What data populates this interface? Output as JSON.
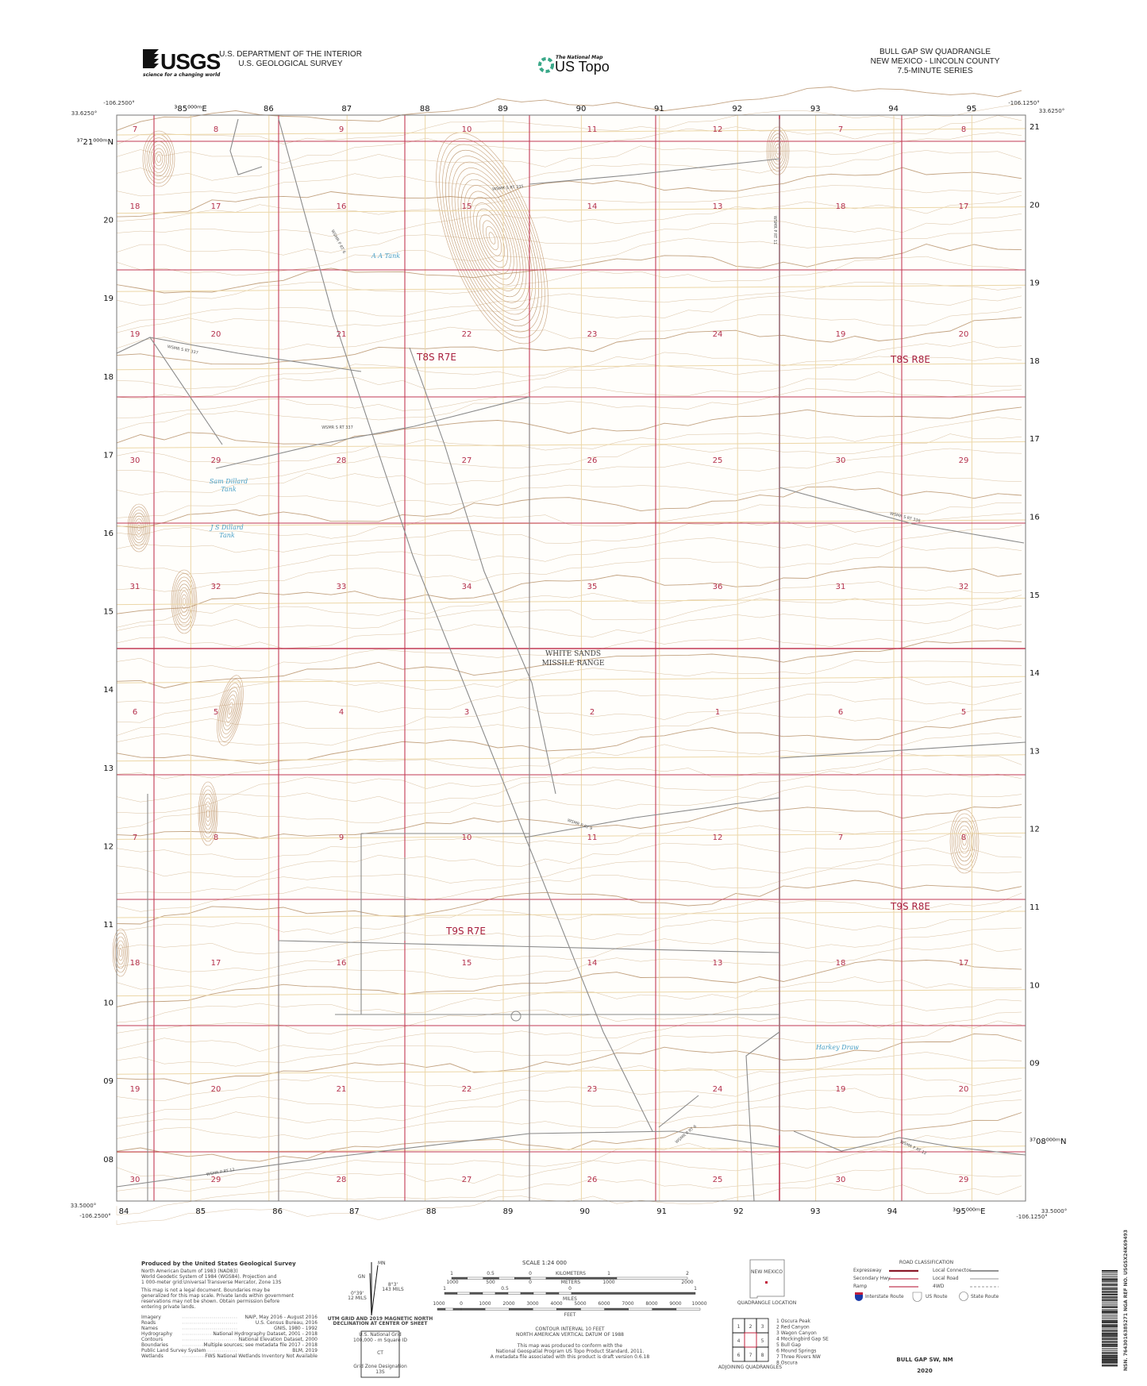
{
  "header": {
    "agency_logo": "USGS",
    "agency_tagline": "science for a changing world",
    "department": "U.S. DEPARTMENT OF THE INTERIOR",
    "survey": "U.S. GEOLOGICAL SURVEY",
    "product_small": "The National Map",
    "product": "US Topo",
    "quad_title": "BULL GAP SW QUADRANGLE",
    "quad_location": "NEW MEXICO - LINCOLN COUNTY",
    "quad_series": "7.5-MINUTE SERIES"
  },
  "corners": {
    "top_left_lon": "-106.2500°",
    "top_left_lat": "33.6250°",
    "top_right_lon": "-106.1250°",
    "top_right_lat": "33.6250°",
    "bottom_left_lon": "-106.2500°",
    "bottom_left_lat": "33.5000°",
    "bottom_right_lon": "-106.1250°",
    "bottom_right_lat": "33.5000°"
  },
  "easting_labels_top": [
    "³85⁰⁰⁰ᵐE",
    "86",
    "87",
    "88",
    "89",
    "90",
    "91",
    "92",
    "93",
    "94",
    "95"
  ],
  "easting_labels_bottom": [
    "84",
    "85",
    "86",
    "87",
    "88",
    "89",
    "90",
    "91",
    "92",
    "93",
    "94",
    "³95⁰⁰⁰ᵐE"
  ],
  "northing_labels_left": [
    "³⁷21⁰⁰⁰ᵐN",
    "20",
    "19",
    "18",
    "17",
    "16",
    "15",
    "14",
    "13",
    "12",
    "11",
    "10",
    "09",
    "08"
  ],
  "northing_labels_right": [
    "21",
    "20",
    "19",
    "18",
    "17",
    "16",
    "15",
    "14",
    "13",
    "12",
    "11",
    "10",
    "09",
    "³⁷08⁰⁰⁰ᵐN"
  ],
  "sections": [
    [
      "7",
      "8",
      "9",
      "10",
      "11",
      "12",
      "7",
      "8"
    ],
    [
      "18",
      "17",
      "16",
      "15",
      "14",
      "13",
      "18",
      "17"
    ],
    [
      "19",
      "20",
      "21",
      "22",
      "23",
      "24",
      "19",
      "20"
    ],
    [
      "30",
      "29",
      "28",
      "27",
      "26",
      "25",
      "30",
      "29"
    ],
    [
      "31",
      "32",
      "33",
      "34",
      "35",
      "36",
      "31",
      "32"
    ],
    [
      "6",
      "5",
      "4",
      "3",
      "2",
      "1",
      "6",
      "5"
    ],
    [
      "7",
      "8",
      "9",
      "10",
      "11",
      "12",
      "7",
      "8"
    ],
    [
      "18",
      "17",
      "16",
      "15",
      "14",
      "13",
      "18",
      "17"
    ],
    [
      "19",
      "20",
      "21",
      "22",
      "23",
      "24",
      "19",
      "20"
    ],
    [
      "30",
      "29",
      "28",
      "27",
      "26",
      "25",
      "30",
      "29"
    ]
  ],
  "townships": [
    "T8S R7E",
    "T8S R8E",
    "T9S R7E",
    "T9S R8E"
  ],
  "land_name": [
    "WHITE SANDS",
    "MISSILE RANGE"
  ],
  "water_features": [
    "A A Tank",
    "Sam Dillard",
    "Tank",
    "J S Dillard",
    "Tank",
    "Harkey Draw"
  ],
  "road_labels": [
    "WSMR S RT 335",
    "WSMR P RT 6",
    "WSMR S RT 337",
    "WSMR S RT 337",
    "WSMR S RT 336",
    "WSMR P RT 11",
    "WSMR P RT 9",
    "WSMR P RT 12",
    "WSMR P RT 12",
    "WSMR P RT 6"
  ],
  "colors": {
    "section_line": "#c23a55",
    "grid_line": "#ecd7a8",
    "contour": "#c9a77c",
    "contour_index": "#a87a4c",
    "road": "#8a8a8a",
    "water": "#4aa0c6"
  },
  "footer": {
    "produced_by": "Produced by the United States Geological Survey",
    "datum_lines": [
      "North American Datum of 1983 (NAD83)",
      "World Geodetic System of 1984 (WGS84).  Projection and",
      "1 000-meter grid:Universal Transverse Mercator, Zone 13S"
    ],
    "disclaimer_lines": [
      "This map is not a legal document. Boundaries may be",
      "generalized for this map scale. Private lands within government",
      "reservations may not be shown. Obtain permission before",
      "entering private lands."
    ],
    "sources": [
      [
        "Imagery",
        "NAIP, May 2016 - August 2016"
      ],
      [
        "Roads",
        "U.S. Census Bureau, 2016"
      ],
      [
        "Names",
        "GNIS, 1980 - 1992"
      ],
      [
        "Hydrography",
        "National Hydrography Dataset, 2001 - 2018"
      ],
      [
        "Contours",
        "National Elevation Dataset, 2000"
      ],
      [
        "Boundaries",
        "Multiple sources; see metadata file 2017 - 2018"
      ],
      [
        "Public Land Survey System",
        "BLM, 2019"
      ],
      [
        "Wetlands",
        "FWS National Wetlands Inventory Not Available"
      ]
    ],
    "declination": {
      "mn": "MN",
      "gn": "GN",
      "angle1": "0°39'",
      "mils1": "12 MILS",
      "angle2": "8°3'",
      "mils2": "143 MILS",
      "caption1": "UTM GRID AND 2019 MAGNETIC NORTH",
      "caption2": "DECLINATION AT CENTER OF SHEET"
    },
    "grid_box": {
      "title": "U.S. National Grid",
      "sub": "100,000 - m Square ID",
      "id": "CT",
      "zone_label": "Grid Zone Designation",
      "zone": "13S"
    },
    "scale": {
      "title": "SCALE 1:24 000",
      "km_ticks": [
        "1",
        "0.5",
        "0",
        "1",
        "2"
      ],
      "km_label": "KILOMETERS",
      "m_ticks": [
        "1000",
        "500",
        "0",
        "1000",
        "2000"
      ],
      "m_label": "METERS",
      "mi_ticks": [
        "1",
        "0.5",
        "0",
        "1"
      ],
      "mi_label": "MILES",
      "ft_ticks": [
        "1000",
        "0",
        "1000",
        "2000",
        "3000",
        "4000",
        "5000",
        "6000",
        "7000",
        "8000",
        "9000",
        "10000"
      ],
      "ft_label": "FEET"
    },
    "contour_lines": [
      "CONTOUR INTERVAL 10 FEET",
      "NORTH AMERICAN VERTICAL DATUM OF 1988"
    ],
    "standard_lines": [
      "This map was produced to conform with the",
      "National Geospatial Program US Topo Product Standard, 2011.",
      "A metadata file associated with this product is draft version 0.6.18"
    ],
    "locator": {
      "state": "NEW MEXICO",
      "caption": "QUADRANGLE LOCATION"
    },
    "road_legend": {
      "title": "ROAD CLASSIFICATION",
      "left": [
        "Expressway",
        "Secondary Hwy",
        "Ramp"
      ],
      "right": [
        "Local Connector",
        "Local Road",
        "4WD"
      ],
      "shields": [
        "Interstate Route",
        "US Route",
        "State Route"
      ]
    },
    "adjoining": {
      "cells": [
        "1",
        "2",
        "3",
        "4",
        "",
        "5",
        "6",
        "7",
        "8"
      ],
      "names": [
        "1 Oscura Peak",
        "2 Red Canyon",
        "3 Wagon Canyon",
        "4 Mockingbird Gap SE",
        "5 Bull Gap",
        "6 Mound Springs",
        "7 Three Rivers NW",
        "8 Oscura"
      ],
      "caption": "ADJOINING QUADRANGLES"
    },
    "sheet_title": "BULL GAP SW,  NM",
    "year": "2020",
    "barcode_text": "NSN. 7643016385271  NGA REF NO. USGSX24K69493"
  }
}
